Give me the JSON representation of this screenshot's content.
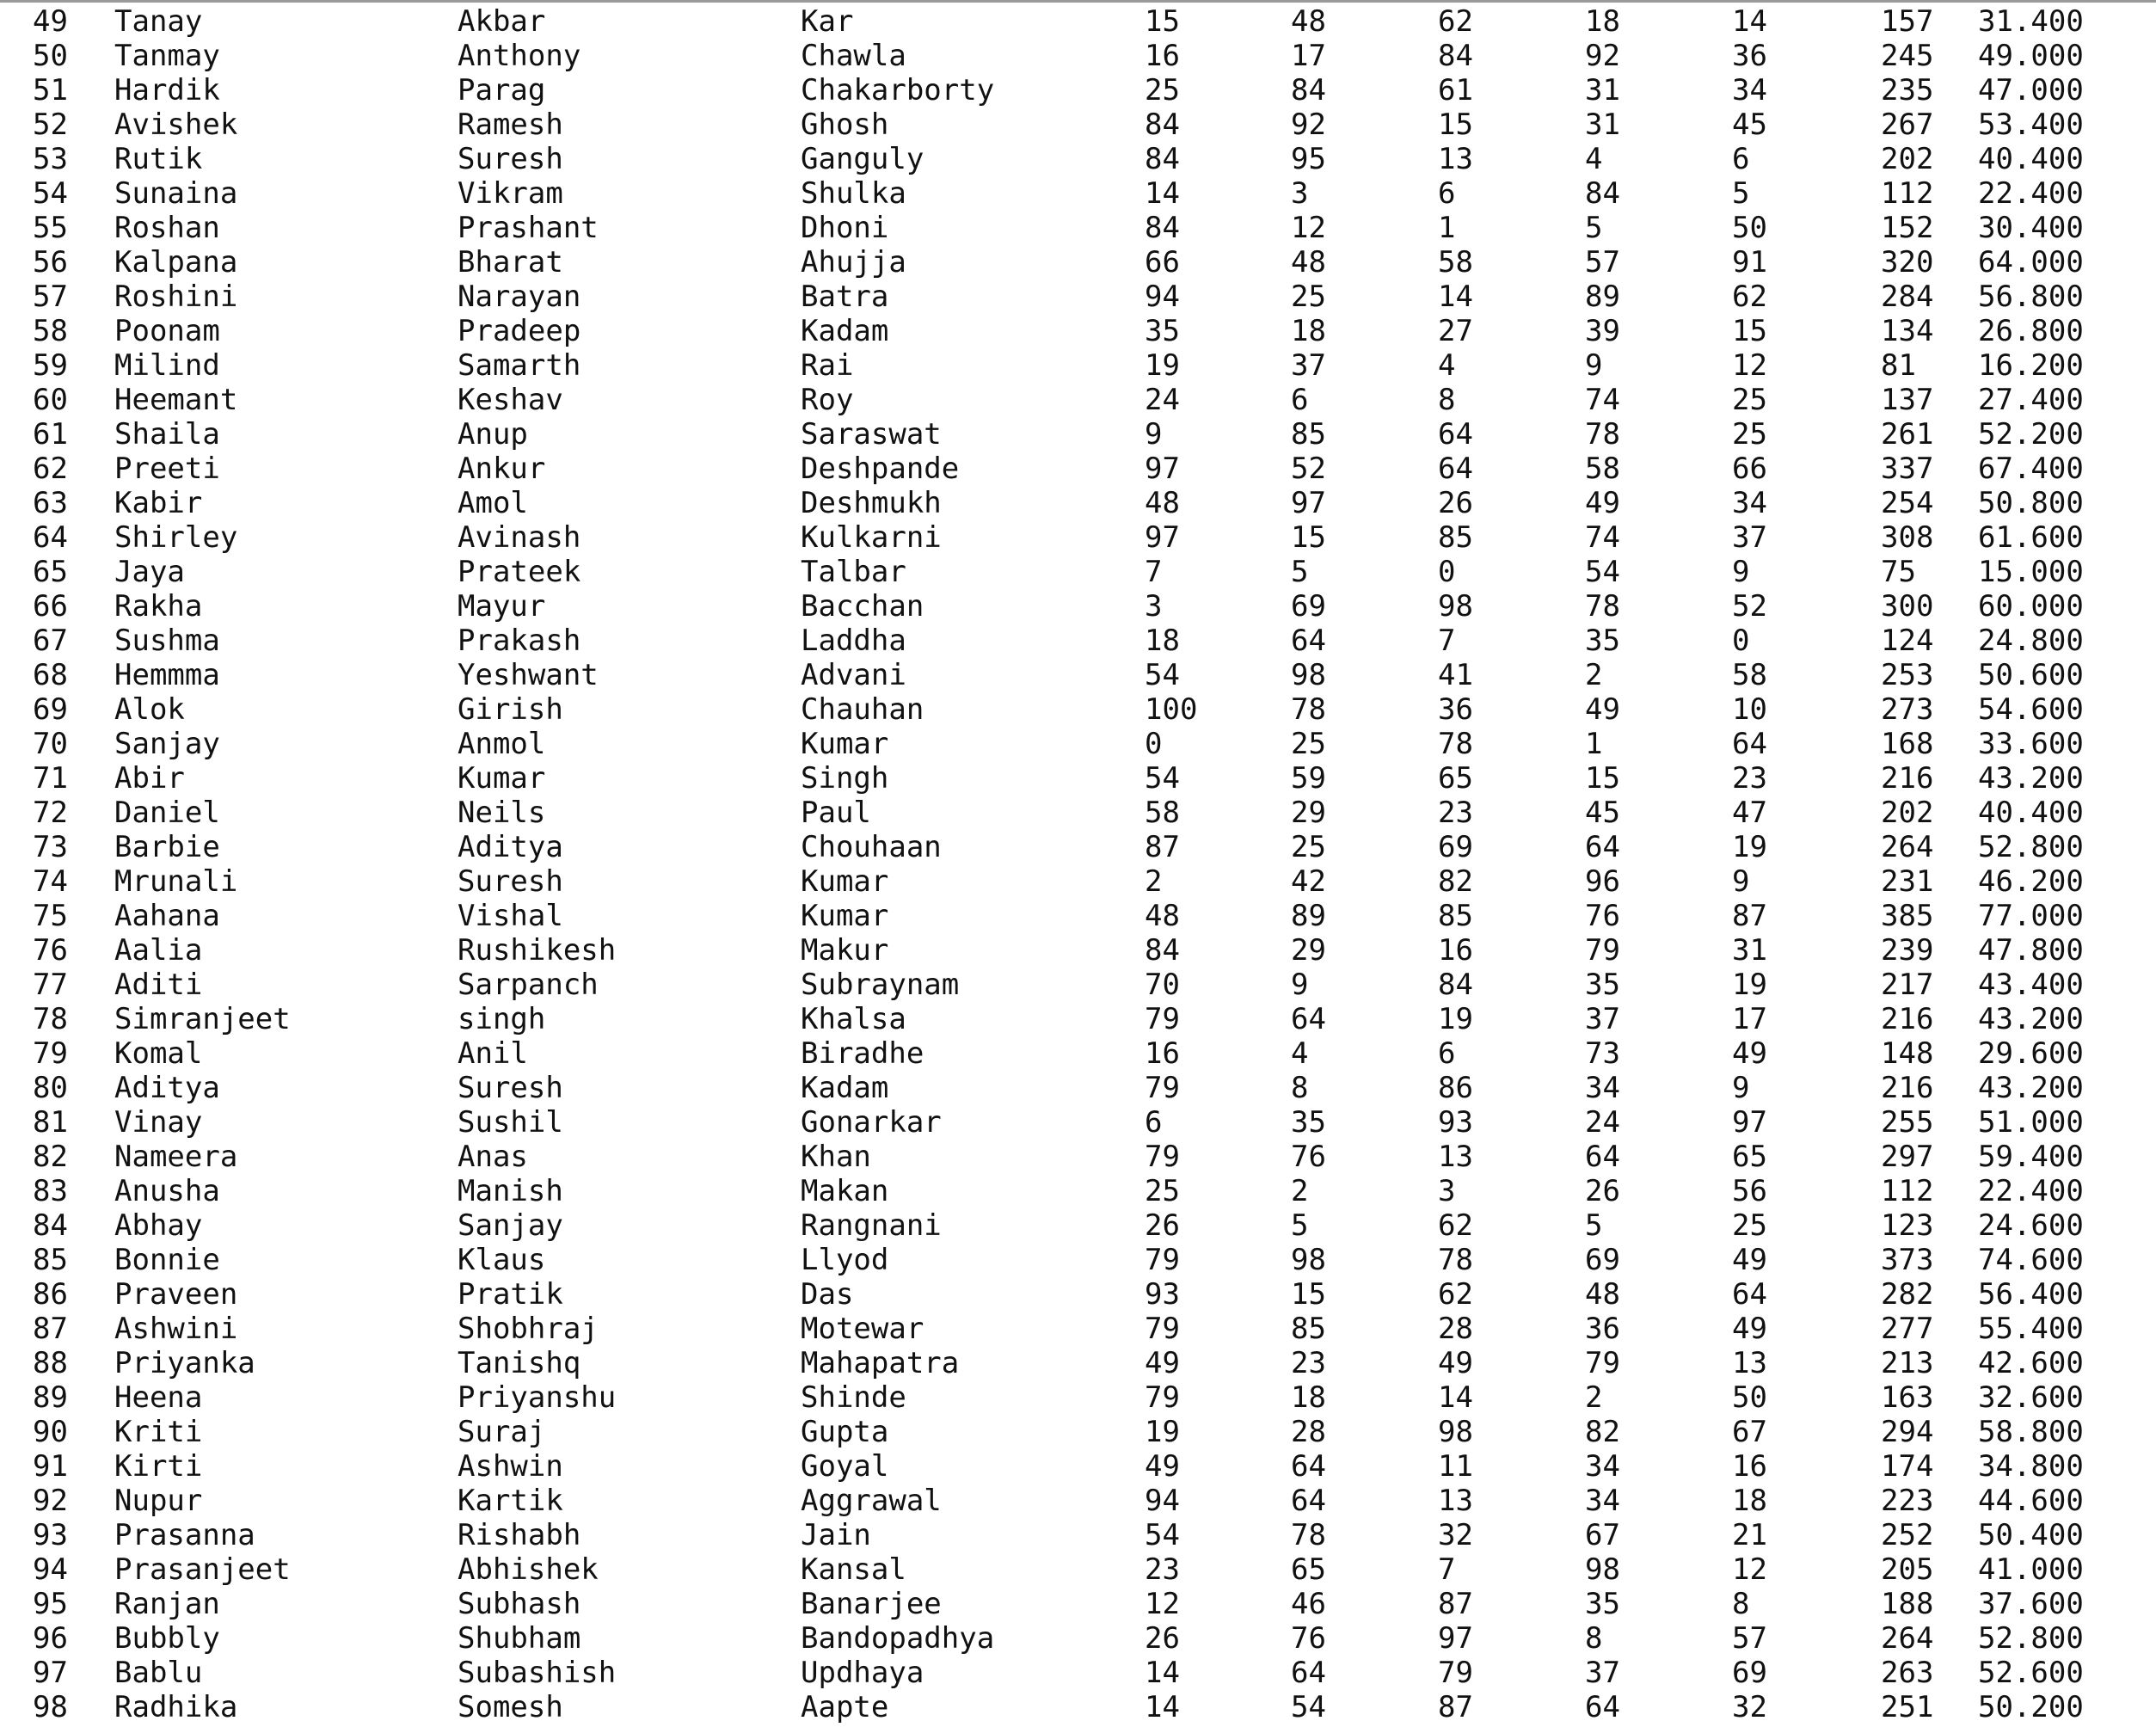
{
  "rows": [
    [
      "49",
      "Tanay",
      "Akbar",
      "Kar",
      "15",
      "48",
      "62",
      "18",
      "14",
      "157",
      "31.400"
    ],
    [
      "50",
      "Tanmay",
      "Anthony",
      "Chawla",
      "16",
      "17",
      "84",
      "92",
      "36",
      "245",
      "49.000"
    ],
    [
      "51",
      "Hardik",
      "Parag",
      "Chakarborty",
      "25",
      "84",
      "61",
      "31",
      "34",
      "235",
      "47.000"
    ],
    [
      "52",
      "Avishek",
      "Ramesh",
      "Ghosh",
      "84",
      "92",
      "15",
      "31",
      "45",
      "267",
      "53.400"
    ],
    [
      "53",
      "Rutik",
      "Suresh",
      "Ganguly",
      "84",
      "95",
      "13",
      "4",
      "6",
      "202",
      "40.400"
    ],
    [
      "54",
      "Sunaina",
      "Vikram",
      "Shulka",
      "14",
      "3",
      "6",
      "84",
      "5",
      "112",
      "22.400"
    ],
    [
      "55",
      "Roshan",
      "Prashant",
      "Dhoni",
      "84",
      "12",
      "1",
      "5",
      "50",
      "152",
      "30.400"
    ],
    [
      "56",
      "Kalpana",
      "Bharat",
      "Ahujja",
      "66",
      "48",
      "58",
      "57",
      "91",
      "320",
      "64.000"
    ],
    [
      "57",
      "Roshini",
      "Narayan",
      "Batra",
      "94",
      "25",
      "14",
      "89",
      "62",
      "284",
      "56.800"
    ],
    [
      "58",
      "Poonam",
      "Pradeep",
      "Kadam",
      "35",
      "18",
      "27",
      "39",
      "15",
      "134",
      "26.800"
    ],
    [
      "59",
      "Milind",
      "Samarth",
      "Rai",
      "19",
      "37",
      "4",
      "9",
      "12",
      "81",
      "16.200"
    ],
    [
      "60",
      "Heemant",
      "Keshav",
      "Roy",
      "24",
      "6",
      "8",
      "74",
      "25",
      "137",
      "27.400"
    ],
    [
      "61",
      "Shaila",
      "Anup",
      "Saraswat",
      "9",
      "85",
      "64",
      "78",
      "25",
      "261",
      "52.200"
    ],
    [
      "62",
      "Preeti",
      "Ankur",
      "Deshpande",
      "97",
      "52",
      "64",
      "58",
      "66",
      "337",
      "67.400"
    ],
    [
      "63",
      "Kabir",
      "Amol",
      "Deshmukh",
      "48",
      "97",
      "26",
      "49",
      "34",
      "254",
      "50.800"
    ],
    [
      "64",
      "Shirley",
      "Avinash",
      "Kulkarni",
      "97",
      "15",
      "85",
      "74",
      "37",
      "308",
      "61.600"
    ],
    [
      "65",
      "Jaya",
      "Prateek",
      "Talbar",
      "7",
      "5",
      "0",
      "54",
      "9",
      "75",
      "15.000"
    ],
    [
      "66",
      "Rakha",
      "Mayur",
      "Bacchan",
      "3",
      "69",
      "98",
      "78",
      "52",
      "300",
      "60.000"
    ],
    [
      "67",
      "Sushma",
      "Prakash",
      "Laddha",
      "18",
      "64",
      "7",
      "35",
      "0",
      "124",
      "24.800"
    ],
    [
      "68",
      "Hemmma",
      "Yeshwant",
      "Advani",
      "54",
      "98",
      "41",
      "2",
      "58",
      "253",
      "50.600"
    ],
    [
      "69",
      "Alok",
      "Girish",
      "Chauhan",
      "100",
      "78",
      "36",
      "49",
      "10",
      "273",
      "54.600"
    ],
    [
      "70",
      "Sanjay",
      "Anmol",
      "Kumar",
      "0",
      "25",
      "78",
      "1",
      "64",
      "168",
      "33.600"
    ],
    [
      "71",
      "Abir",
      "Kumar",
      "Singh",
      "54",
      "59",
      "65",
      "15",
      "23",
      "216",
      "43.200"
    ],
    [
      "72",
      "Daniel",
      "Neils",
      "Paul",
      "58",
      "29",
      "23",
      "45",
      "47",
      "202",
      "40.400"
    ],
    [
      "73",
      "Barbie",
      "Aditya",
      "Chouhaan",
      "87",
      "25",
      "69",
      "64",
      "19",
      "264",
      "52.800"
    ],
    [
      "74",
      "Mrunali",
      "Suresh",
      "Kumar",
      "2",
      "42",
      "82",
      "96",
      "9",
      "231",
      "46.200"
    ],
    [
      "75",
      "Aahana",
      "Vishal",
      "Kumar",
      "48",
      "89",
      "85",
      "76",
      "87",
      "385",
      "77.000"
    ],
    [
      "76",
      "Aalia",
      "Rushikesh",
      "Makur",
      "84",
      "29",
      "16",
      "79",
      "31",
      "239",
      "47.800"
    ],
    [
      "77",
      "Aditi",
      "Sarpanch",
      "Subraynam",
      "70",
      "9",
      "84",
      "35",
      "19",
      "217",
      "43.400"
    ],
    [
      "78",
      "Simranjeet",
      "singh",
      "Khalsa",
      "79",
      "64",
      "19",
      "37",
      "17",
      "216",
      "43.200"
    ],
    [
      "79",
      "Komal",
      "Anil",
      "Biradhe",
      "16",
      "4",
      "6",
      "73",
      "49",
      "148",
      "29.600"
    ],
    [
      "80",
      "Aditya",
      "Suresh",
      "Kadam",
      "79",
      "8",
      "86",
      "34",
      "9",
      "216",
      "43.200"
    ],
    [
      "81",
      "Vinay",
      "Sushil",
      "Gonarkar",
      "6",
      "35",
      "93",
      "24",
      "97",
      "255",
      "51.000"
    ],
    [
      "82",
      "Nameera",
      "Anas",
      "Khan",
      "79",
      "76",
      "13",
      "64",
      "65",
      "297",
      "59.400"
    ],
    [
      "83",
      "Anusha",
      "Manish",
      "Makan",
      "25",
      "2",
      "3",
      "26",
      "56",
      "112",
      "22.400"
    ],
    [
      "84",
      "Abhay",
      "Sanjay",
      "Rangnani",
      "26",
      "5",
      "62",
      "5",
      "25",
      "123",
      "24.600"
    ],
    [
      "85",
      "Bonnie",
      "Klaus",
      "Llyod",
      "79",
      "98",
      "78",
      "69",
      "49",
      "373",
      "74.600"
    ],
    [
      "86",
      "Praveen",
      "Pratik",
      "Das",
      "93",
      "15",
      "62",
      "48",
      "64",
      "282",
      "56.400"
    ],
    [
      "87",
      "Ashwini",
      "Shobhraj",
      "Motewar",
      "79",
      "85",
      "28",
      "36",
      "49",
      "277",
      "55.400"
    ],
    [
      "88",
      "Priyanka",
      "Tanishq",
      "Mahapatra",
      "49",
      "23",
      "49",
      "79",
      "13",
      "213",
      "42.600"
    ],
    [
      "89",
      "Heena",
      "Priyanshu",
      "Shinde",
      "79",
      "18",
      "14",
      "2",
      "50",
      "163",
      "32.600"
    ],
    [
      "90",
      "Kriti",
      "Suraj",
      "Gupta",
      "19",
      "28",
      "98",
      "82",
      "67",
      "294",
      "58.800"
    ],
    [
      "91",
      "Kirti",
      "Ashwin",
      "Goyal",
      "49",
      "64",
      "11",
      "34",
      "16",
      "174",
      "34.800"
    ],
    [
      "92",
      "Nupur",
      "Kartik",
      "Aggrawal",
      "94",
      "64",
      "13",
      "34",
      "18",
      "223",
      "44.600"
    ],
    [
      "93",
      "Prasanna",
      "Rishabh",
      "Jain",
      "54",
      "78",
      "32",
      "67",
      "21",
      "252",
      "50.400"
    ],
    [
      "94",
      "Prasanjeet",
      "Abhishek",
      "Kansal",
      "23",
      "65",
      "7",
      "98",
      "12",
      "205",
      "41.000"
    ],
    [
      "95",
      "Ranjan",
      "Subhash",
      "Banarjee",
      "12",
      "46",
      "87",
      "35",
      "8",
      "188",
      "37.600"
    ],
    [
      "96",
      "Bubbly",
      "Shubham",
      "Bandopadhya",
      "26",
      "76",
      "97",
      "8",
      "57",
      "264",
      "52.800"
    ],
    [
      "97",
      "Bablu",
      "Subashish",
      "Updhaya",
      "14",
      "64",
      "79",
      "37",
      "69",
      "263",
      "52.600"
    ],
    [
      "98",
      "Radhika",
      "Somesh",
      "Aapte",
      "14",
      "54",
      "87",
      "64",
      "32",
      "251",
      "50.200"
    ]
  ]
}
